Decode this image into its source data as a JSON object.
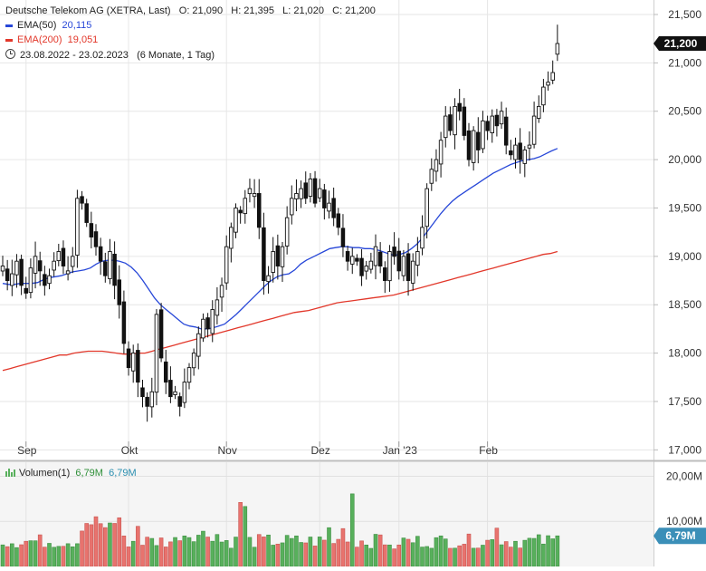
{
  "header": {
    "title": "Deutsche Telekom AG (XETRA, Last)",
    "ohlc": "O: 21,090   H: 21,395   L: 21,020   C: 21,200",
    "ema50_label": "EMA(50)",
    "ema50_value": "20,115",
    "ema200_label": "EMA(200)",
    "ema200_value": "19,051",
    "period": "23.08.2022 - 23.02.2023",
    "period_note": "(6 Monate, 1 Tag)"
  },
  "volume_legend": {
    "label": "Volumen(1)",
    "value_green": "6,79M",
    "value_blue": "6,79M"
  },
  "colors": {
    "up": "#58b05c",
    "down": "#e8736e",
    "candle_body_up": "#ffffff",
    "candle_body_down": "#111111",
    "ema50": "#2747d8",
    "ema200": "#e2372a",
    "grid": "#e6e6e6",
    "price_badge": "#111111",
    "volume_badge": "#3b8fb8",
    "legend_green": "#2f8f39",
    "legend_blue": "#2b8fb0"
  },
  "chart_data": [
    {
      "type": "candlestick",
      "title": "Deutsche Telekom AG (XETRA, Last)",
      "x_ticks": [
        "Sep",
        "Okt",
        "Nov",
        "Dez",
        "Jan '23",
        "Feb"
      ],
      "y_ticks": [
        "21,500",
        "21,000",
        "20,500",
        "20,000",
        "19,500",
        "19,000",
        "18,500",
        "18,000",
        "17,500",
        "17,000"
      ],
      "y_tick_values": [
        21.5,
        21.0,
        20.5,
        20.0,
        19.5,
        19.0,
        18.5,
        18.0,
        17.5,
        17.0
      ],
      "ylim": [
        16.9,
        21.65
      ],
      "last_price_label": "21,200",
      "last_price": 21.2,
      "grid": true,
      "closes": [
        18.9,
        18.75,
        18.82,
        18.95,
        18.7,
        18.62,
        18.88,
        19.0,
        18.85,
        18.7,
        18.8,
        18.95,
        19.05,
        18.9,
        18.85,
        19.0,
        19.6,
        19.55,
        19.35,
        19.2,
        19.1,
        18.95,
        18.8,
        19.05,
        18.7,
        18.5,
        18.1,
        17.85,
        18.0,
        17.7,
        17.55,
        17.45,
        17.6,
        18.4,
        17.95,
        17.7,
        17.55,
        17.6,
        17.45,
        17.7,
        17.85,
        18.0,
        18.2,
        18.35,
        18.25,
        18.45,
        18.55,
        18.7,
        19.1,
        19.3,
        19.5,
        19.45,
        19.6,
        19.7,
        19.65,
        19.3,
        18.75,
        18.8,
        19.05,
        18.9,
        19.1,
        19.4,
        19.6,
        19.65,
        19.7,
        19.6,
        19.8,
        19.55,
        19.7,
        19.5,
        19.55,
        19.4,
        19.3,
        19.1,
        18.95,
        19.0,
        18.95,
        18.8,
        18.9,
        18.95,
        19.1,
        18.9,
        18.75,
        19.05,
        19.0,
        18.85,
        19.0,
        18.75,
        18.95,
        19.05,
        19.3,
        19.7,
        19.9,
        20.0,
        20.2,
        20.45,
        20.3,
        20.55,
        20.5,
        20.25,
        20.0,
        20.3,
        20.1,
        20.4,
        20.3,
        20.45,
        20.35,
        20.5,
        20.15,
        20.05,
        20.15,
        20.0,
        20.1,
        20.15,
        20.45,
        20.55,
        20.75,
        20.8,
        20.9,
        21.2
      ],
      "ema50": [
        18.72,
        18.71,
        18.71,
        18.72,
        18.72,
        18.72,
        18.73,
        18.76,
        18.78,
        18.79,
        18.8,
        18.82,
        18.84,
        18.85,
        18.86,
        18.88,
        18.92,
        18.95,
        18.96,
        18.96,
        18.95,
        18.93,
        18.89,
        18.83,
        18.75,
        18.66,
        18.57,
        18.5,
        18.45,
        18.4,
        18.35,
        18.3,
        18.28,
        18.27,
        18.25,
        18.25,
        18.26,
        18.28,
        18.3,
        18.35,
        18.4,
        18.46,
        18.52,
        18.58,
        18.64,
        18.7,
        18.75,
        18.79,
        18.81,
        18.82,
        18.86,
        18.92,
        18.96,
        18.99,
        19.02,
        19.05,
        19.08,
        19.09,
        19.1,
        19.1,
        19.09,
        19.09,
        19.08,
        19.08,
        19.07,
        19.05,
        19.03,
        19.01,
        19.02,
        19.04,
        19.08,
        19.13,
        19.2,
        19.28,
        19.36,
        19.44,
        19.51,
        19.57,
        19.62,
        19.66,
        19.7,
        19.74,
        19.78,
        19.82,
        19.86,
        19.89,
        19.92,
        19.95,
        19.97,
        19.99,
        20.0,
        20.01,
        20.03,
        20.06,
        20.09,
        20.115
      ],
      "ema200": [
        17.82,
        17.84,
        17.86,
        17.88,
        17.9,
        17.92,
        17.94,
        17.96,
        17.98,
        17.98,
        18.0,
        18.01,
        18.02,
        18.02,
        18.02,
        18.01,
        18.0,
        17.99,
        17.99,
        18.0,
        18.0,
        18.02,
        18.04,
        18.06,
        18.08,
        18.1,
        18.12,
        18.14,
        18.16,
        18.18,
        18.2,
        18.22,
        18.24,
        18.26,
        18.28,
        18.3,
        18.32,
        18.34,
        18.36,
        18.38,
        18.4,
        18.42,
        18.43,
        18.44,
        18.46,
        18.48,
        18.5,
        18.52,
        18.53,
        18.54,
        18.55,
        18.56,
        18.57,
        18.58,
        18.59,
        18.6,
        18.62,
        18.64,
        18.66,
        18.68,
        18.7,
        18.72,
        18.74,
        18.76,
        18.78,
        18.8,
        18.82,
        18.84,
        18.86,
        18.88,
        18.9,
        18.92,
        18.94,
        18.96,
        18.98,
        19.0,
        19.02,
        19.03,
        19.05
      ],
      "series": [
        {
          "name": "EMA(50)",
          "last": 20.115
        },
        {
          "name": "EMA(200)",
          "last": 19.051
        }
      ]
    },
    {
      "type": "bar",
      "title": "Volumen(1)",
      "y_ticks": [
        "20,00M",
        "10,00M"
      ],
      "y_tick_values": [
        20.0,
        10.0
      ],
      "ylim": [
        0,
        21.5
      ],
      "last_volume_label": "6,79M",
      "last_volume": 6.79
    }
  ]
}
